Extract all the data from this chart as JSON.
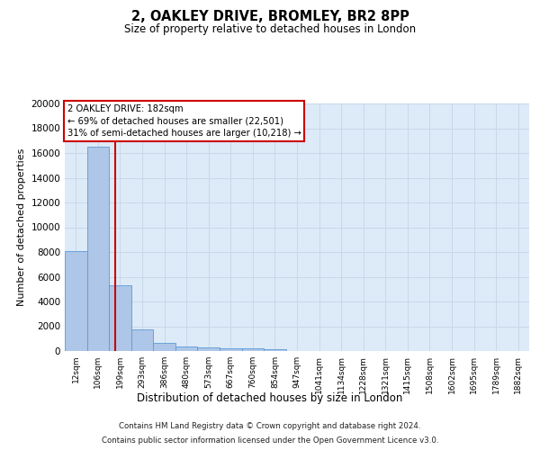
{
  "title1": "2, OAKLEY DRIVE, BROMLEY, BR2 8PP",
  "title2": "Size of property relative to detached houses in London",
  "xlabel": "Distribution of detached houses by size in London",
  "ylabel": "Number of detached properties",
  "bar_labels": [
    "12sqm",
    "106sqm",
    "199sqm",
    "293sqm",
    "386sqm",
    "480sqm",
    "573sqm",
    "667sqm",
    "760sqm",
    "854sqm",
    "947sqm",
    "1041sqm",
    "1134sqm",
    "1228sqm",
    "1321sqm",
    "1415sqm",
    "1508sqm",
    "1602sqm",
    "1695sqm",
    "1789sqm",
    "1882sqm"
  ],
  "bar_heights": [
    8100,
    16500,
    5300,
    1750,
    650,
    350,
    270,
    210,
    200,
    150,
    0,
    0,
    0,
    0,
    0,
    0,
    0,
    0,
    0,
    0,
    0
  ],
  "bar_color": "#aec6e8",
  "bar_edge_color": "#5b9bd5",
  "grid_color": "#c8d8e8",
  "background_color": "#ddeaf8",
  "vline_x": 1.78,
  "vline_color": "#cc0000",
  "annotation_box_text": "2 OAKLEY DRIVE: 182sqm\n← 69% of detached houses are smaller (22,501)\n31% of semi-detached houses are larger (10,218) →",
  "annotation_box_color": "#cc0000",
  "annotation_box_bg": "#ffffff",
  "ylim": [
    0,
    20000
  ],
  "yticks": [
    0,
    2000,
    4000,
    6000,
    8000,
    10000,
    12000,
    14000,
    16000,
    18000,
    20000
  ],
  "footer_line1": "Contains HM Land Registry data © Crown copyright and database right 2024.",
  "footer_line2": "Contains public sector information licensed under the Open Government Licence v3.0."
}
